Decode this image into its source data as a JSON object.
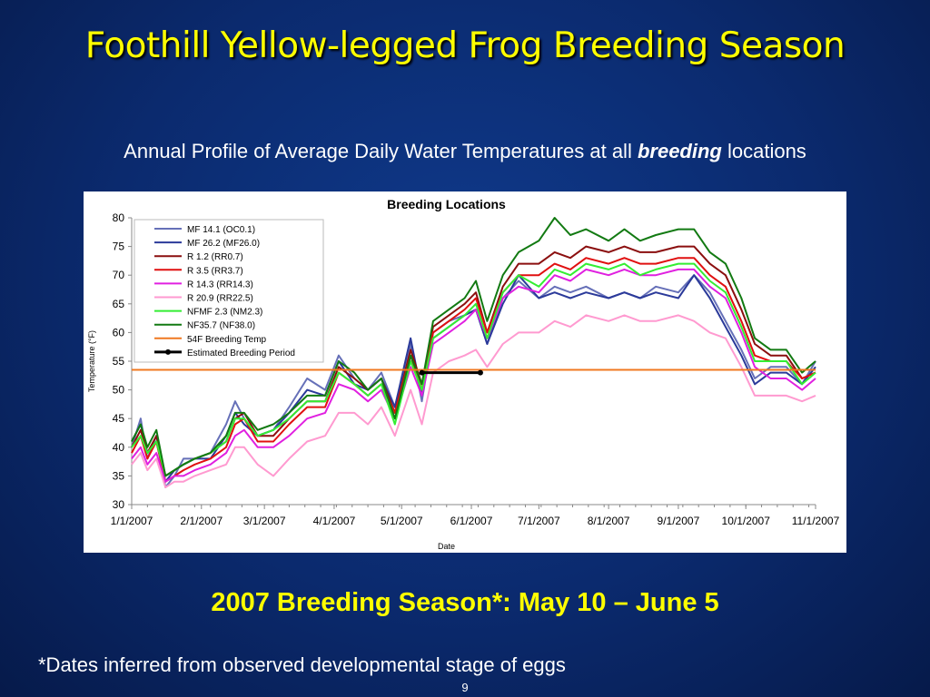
{
  "slide": {
    "title": "Foothill Yellow-legged Frog Breeding Season",
    "subtitle_pre": "Annual Profile of Average Daily Water Temperatures at all ",
    "subtitle_emph": "breeding",
    "subtitle_post": " locations",
    "season_text": "2007 Breeding Season*:  May 10 – June 5",
    "footnote": "*Dates inferred from observed developmental stage of eggs",
    "page_number": "9"
  },
  "chart_data": {
    "type": "line",
    "title": "Breeding Locations",
    "xlabel": "Date",
    "ylabel": "Temperature (°F)",
    "ylim": [
      30,
      80
    ],
    "yticks": [
      30,
      35,
      40,
      45,
      50,
      55,
      60,
      65,
      70,
      75,
      80
    ],
    "xlim": [
      "2007-01-01",
      "2007-11-01"
    ],
    "xticks": [
      "1/1/2007",
      "2/1/2007",
      "3/1/2007",
      "4/1/2007",
      "5/1/2007",
      "6/1/2007",
      "7/1/2007",
      "8/1/2007",
      "9/1/2007",
      "10/1/2007",
      "11/1/2007"
    ],
    "xtick_dates": [
      "2007-01-01",
      "2007-02-01",
      "2007-03-01",
      "2007-04-01",
      "2007-05-01",
      "2007-06-01",
      "2007-07-01",
      "2007-08-01",
      "2007-09-01",
      "2007-10-01",
      "2007-11-01"
    ],
    "legend_position": "top-left",
    "grid": false,
    "series": [
      {
        "name": "MF 14.1 (OC0.1)",
        "color": "#6670b8",
        "x": [
          "2007-01-01",
          "2007-01-05",
          "2007-01-08",
          "2007-01-12",
          "2007-01-16",
          "2007-01-20",
          "2007-01-24",
          "2007-01-29",
          "2007-02-05",
          "2007-02-12",
          "2007-02-16",
          "2007-02-20",
          "2007-02-26",
          "2007-03-05",
          "2007-03-12",
          "2007-03-20",
          "2007-03-28",
          "2007-04-03",
          "2007-04-10",
          "2007-04-16",
          "2007-04-22",
          "2007-04-28",
          "2007-05-05",
          "2007-05-10",
          "2007-05-15",
          "2007-05-22",
          "2007-05-29",
          "2007-06-03",
          "2007-06-08",
          "2007-06-15",
          "2007-06-22",
          "2007-07-01",
          "2007-07-08",
          "2007-07-15",
          "2007-07-22",
          "2007-08-01",
          "2007-08-08",
          "2007-08-15",
          "2007-08-22",
          "2007-09-01",
          "2007-09-08",
          "2007-09-15",
          "2007-09-22",
          "2007-09-29",
          "2007-10-05",
          "2007-10-12",
          "2007-10-19",
          "2007-10-26",
          "2007-11-01"
        ],
        "y": [
          40,
          45,
          38,
          42,
          33,
          35,
          38,
          38,
          39,
          44,
          48,
          45,
          42,
          43,
          47,
          52,
          50,
          56,
          52,
          50,
          53,
          47,
          58,
          48,
          60,
          62,
          63,
          64,
          58,
          66,
          69,
          66,
          68,
          67,
          68,
          66,
          67,
          66,
          68,
          67,
          70,
          67,
          62,
          57,
          52,
          54,
          54,
          51,
          55
        ]
      },
      {
        "name": "MF 26.2 (MF26.0)",
        "color": "#2b3a9a",
        "x": [
          "2007-01-01",
          "2007-01-05",
          "2007-01-08",
          "2007-01-12",
          "2007-01-16",
          "2007-01-20",
          "2007-01-24",
          "2007-01-29",
          "2007-02-05",
          "2007-02-12",
          "2007-02-16",
          "2007-02-20",
          "2007-02-26",
          "2007-03-05",
          "2007-03-12",
          "2007-03-20",
          "2007-03-28",
          "2007-04-03",
          "2007-04-10",
          "2007-04-16",
          "2007-04-22",
          "2007-04-28",
          "2007-05-05",
          "2007-05-10",
          "2007-05-15",
          "2007-05-22",
          "2007-05-29",
          "2007-06-03",
          "2007-06-08",
          "2007-06-15",
          "2007-06-22",
          "2007-07-01",
          "2007-07-08",
          "2007-07-15",
          "2007-07-22",
          "2007-08-01",
          "2007-08-08",
          "2007-08-15",
          "2007-08-22",
          "2007-09-01",
          "2007-09-08",
          "2007-09-15",
          "2007-09-22",
          "2007-09-29",
          "2007-10-05",
          "2007-10-12",
          "2007-10-19",
          "2007-10-26",
          "2007-11-01"
        ],
        "y": [
          41,
          44,
          39,
          41,
          34,
          36,
          37,
          38,
          38,
          42,
          46,
          44,
          42,
          43,
          46,
          50,
          49,
          55,
          51,
          50,
          52,
          47,
          59,
          49,
          59,
          61,
          63,
          64,
          58,
          65,
          70,
          66,
          67,
          66,
          67,
          66,
          67,
          66,
          67,
          66,
          70,
          66,
          61,
          56,
          51,
          53,
          53,
          51,
          54
        ]
      },
      {
        "name": "R 1.2 (RR0.7)",
        "color": "#8b0f0f",
        "x": [
          "2007-01-01",
          "2007-01-05",
          "2007-01-08",
          "2007-01-12",
          "2007-01-16",
          "2007-01-20",
          "2007-01-24",
          "2007-01-29",
          "2007-02-05",
          "2007-02-12",
          "2007-02-16",
          "2007-02-20",
          "2007-02-26",
          "2007-03-05",
          "2007-03-12",
          "2007-03-20",
          "2007-03-28",
          "2007-04-03",
          "2007-04-10",
          "2007-04-16",
          "2007-04-22",
          "2007-04-28",
          "2007-05-05",
          "2007-05-10",
          "2007-05-15",
          "2007-05-22",
          "2007-05-29",
          "2007-06-03",
          "2007-06-08",
          "2007-06-15",
          "2007-06-22",
          "2007-07-01",
          "2007-07-08",
          "2007-07-15",
          "2007-07-22",
          "2007-08-01",
          "2007-08-08",
          "2007-08-15",
          "2007-08-22",
          "2007-09-01",
          "2007-09-08",
          "2007-09-15",
          "2007-09-22",
          "2007-09-29",
          "2007-10-05",
          "2007-10-12",
          "2007-10-19",
          "2007-10-26",
          "2007-11-01"
        ],
        "y": [
          40,
          43,
          39,
          42,
          35,
          36,
          37,
          38,
          39,
          41,
          45,
          46,
          42,
          42,
          45,
          48,
          48,
          54,
          52,
          50,
          52,
          46,
          57,
          51,
          61,
          63,
          65,
          67,
          60,
          68,
          72,
          72,
          74,
          73,
          75,
          74,
          75,
          74,
          74,
          75,
          75,
          72,
          70,
          64,
          58,
          56,
          56,
          52,
          53
        ]
      },
      {
        "name": "R 3.5 (RR3.7)",
        "color": "#e01010",
        "x": [
          "2007-01-01",
          "2007-01-05",
          "2007-01-08",
          "2007-01-12",
          "2007-01-16",
          "2007-01-20",
          "2007-01-24",
          "2007-01-29",
          "2007-02-05",
          "2007-02-12",
          "2007-02-16",
          "2007-02-20",
          "2007-02-26",
          "2007-03-05",
          "2007-03-12",
          "2007-03-20",
          "2007-03-28",
          "2007-04-03",
          "2007-04-10",
          "2007-04-16",
          "2007-04-22",
          "2007-04-28",
          "2007-05-05",
          "2007-05-10",
          "2007-05-15",
          "2007-05-22",
          "2007-05-29",
          "2007-06-03",
          "2007-06-08",
          "2007-06-15",
          "2007-06-22",
          "2007-07-01",
          "2007-07-08",
          "2007-07-15",
          "2007-07-22",
          "2007-08-01",
          "2007-08-08",
          "2007-08-15",
          "2007-08-22",
          "2007-09-01",
          "2007-09-08",
          "2007-09-15",
          "2007-09-22",
          "2007-09-29",
          "2007-10-05",
          "2007-10-12",
          "2007-10-19",
          "2007-10-26",
          "2007-11-01"
        ],
        "y": [
          39,
          42,
          38,
          41,
          34,
          35,
          36,
          37,
          38,
          40,
          44,
          45,
          41,
          41,
          44,
          47,
          47,
          53,
          51,
          49,
          51,
          46,
          56,
          50,
          60,
          62,
          64,
          66,
          60,
          67,
          70,
          70,
          72,
          71,
          73,
          72,
          73,
          72,
          72,
          73,
          73,
          70,
          68,
          62,
          56,
          55,
          55,
          52,
          53
        ]
      },
      {
        "name": "R 14.3 (RR14.3)",
        "color": "#e020e0",
        "x": [
          "2007-01-01",
          "2007-01-05",
          "2007-01-08",
          "2007-01-12",
          "2007-01-16",
          "2007-01-20",
          "2007-01-24",
          "2007-01-29",
          "2007-02-05",
          "2007-02-12",
          "2007-02-16",
          "2007-02-20",
          "2007-02-26",
          "2007-03-05",
          "2007-03-12",
          "2007-03-20",
          "2007-03-28",
          "2007-04-03",
          "2007-04-10",
          "2007-04-16",
          "2007-04-22",
          "2007-04-28",
          "2007-05-05",
          "2007-05-10",
          "2007-05-15",
          "2007-05-22",
          "2007-05-29",
          "2007-06-03",
          "2007-06-08",
          "2007-06-15",
          "2007-06-22",
          "2007-07-01",
          "2007-07-08",
          "2007-07-15",
          "2007-07-22",
          "2007-08-01",
          "2007-08-08",
          "2007-08-15",
          "2007-08-22",
          "2007-09-01",
          "2007-09-08",
          "2007-09-15",
          "2007-09-22",
          "2007-09-29",
          "2007-10-05",
          "2007-10-12",
          "2007-10-19",
          "2007-10-26",
          "2007-11-01"
        ],
        "y": [
          38,
          40,
          37,
          39,
          34,
          35,
          35,
          36,
          37,
          39,
          42,
          43,
          40,
          40,
          42,
          45,
          46,
          51,
          50,
          48,
          50,
          45,
          54,
          49,
          58,
          60,
          62,
          64,
          59,
          66,
          68,
          67,
          70,
          69,
          71,
          70,
          71,
          70,
          70,
          71,
          71,
          68,
          66,
          60,
          54,
          52,
          52,
          50,
          52
        ]
      },
      {
        "name": "R 20.9 (RR22.5)",
        "color": "#ff9ad0",
        "x": [
          "2007-01-01",
          "2007-01-05",
          "2007-01-08",
          "2007-01-12",
          "2007-01-16",
          "2007-01-20",
          "2007-01-24",
          "2007-01-29",
          "2007-02-05",
          "2007-02-12",
          "2007-02-16",
          "2007-02-20",
          "2007-02-26",
          "2007-03-05",
          "2007-03-12",
          "2007-03-20",
          "2007-03-28",
          "2007-04-03",
          "2007-04-10",
          "2007-04-16",
          "2007-04-22",
          "2007-04-28",
          "2007-05-05",
          "2007-05-10",
          "2007-05-15",
          "2007-05-22",
          "2007-05-29",
          "2007-06-03",
          "2007-06-08",
          "2007-06-15",
          "2007-06-22",
          "2007-07-01",
          "2007-07-08",
          "2007-07-15",
          "2007-07-22",
          "2007-08-01",
          "2007-08-08",
          "2007-08-15",
          "2007-08-22",
          "2007-09-01",
          "2007-09-08",
          "2007-09-15",
          "2007-09-22",
          "2007-09-29",
          "2007-10-05",
          "2007-10-12",
          "2007-10-19",
          "2007-10-26",
          "2007-11-01"
        ],
        "y": [
          37,
          39,
          36,
          38,
          33,
          34,
          34,
          35,
          36,
          37,
          40,
          40,
          37,
          35,
          38,
          41,
          42,
          46,
          46,
          44,
          47,
          42,
          50,
          44,
          53,
          55,
          56,
          57,
          54,
          58,
          60,
          60,
          62,
          61,
          63,
          62,
          63,
          62,
          62,
          63,
          62,
          60,
          59,
          54,
          49,
          49,
          49,
          48,
          49
        ]
      },
      {
        "name": "NFMF 2.3 (NM2.3)",
        "color": "#33ee33",
        "x": [
          "2007-01-01",
          "2007-01-05",
          "2007-01-08",
          "2007-01-12",
          "2007-01-16",
          "2007-01-20",
          "2007-01-24",
          "2007-01-29",
          "2007-02-05",
          "2007-02-12",
          "2007-02-16",
          "2007-02-20",
          "2007-02-26",
          "2007-03-05",
          "2007-03-12",
          "2007-03-20",
          "2007-03-28",
          "2007-04-03",
          "2007-04-10",
          "2007-04-16",
          "2007-04-22",
          "2007-04-28",
          "2007-05-05",
          "2007-05-10",
          "2007-05-15",
          "2007-05-22",
          "2007-05-29",
          "2007-06-03",
          "2007-06-08",
          "2007-06-15",
          "2007-06-22",
          "2007-07-01",
          "2007-07-08",
          "2007-07-15",
          "2007-07-22",
          "2007-08-01",
          "2007-08-08",
          "2007-08-15",
          "2007-08-22",
          "2007-09-01",
          "2007-09-08",
          "2007-09-15",
          "2007-09-22",
          "2007-09-29",
          "2007-10-05",
          "2007-10-12",
          "2007-10-19",
          "2007-10-26",
          "2007-11-01"
        ],
        "y": [
          40,
          42,
          39,
          41,
          35,
          36,
          37,
          38,
          39,
          41,
          45,
          45,
          42,
          43,
          45,
          48,
          48,
          53,
          51,
          49,
          51,
          44,
          55,
          50,
          59,
          61,
          63,
          65,
          59,
          67,
          70,
          68,
          71,
          70,
          72,
          71,
          72,
          70,
          71,
          72,
          72,
          69,
          67,
          61,
          55,
          55,
          55,
          51,
          53
        ]
      },
      {
        "name": "NF35.7 (NF38.0)",
        "color": "#127a12",
        "x": [
          "2007-01-01",
          "2007-01-05",
          "2007-01-08",
          "2007-01-12",
          "2007-01-16",
          "2007-01-20",
          "2007-01-24",
          "2007-01-29",
          "2007-02-05",
          "2007-02-12",
          "2007-02-16",
          "2007-02-20",
          "2007-02-26",
          "2007-03-05",
          "2007-03-12",
          "2007-03-20",
          "2007-03-28",
          "2007-04-03",
          "2007-04-10",
          "2007-04-16",
          "2007-04-22",
          "2007-04-28",
          "2007-05-05",
          "2007-05-10",
          "2007-05-15",
          "2007-05-22",
          "2007-05-29",
          "2007-06-03",
          "2007-06-08",
          "2007-06-15",
          "2007-06-22",
          "2007-07-01",
          "2007-07-08",
          "2007-07-15",
          "2007-07-22",
          "2007-08-01",
          "2007-08-08",
          "2007-08-15",
          "2007-08-22",
          "2007-09-01",
          "2007-09-08",
          "2007-09-15",
          "2007-09-22",
          "2007-09-29",
          "2007-10-05",
          "2007-10-12",
          "2007-10-19",
          "2007-10-26",
          "2007-11-01"
        ],
        "y": [
          41,
          44,
          40,
          43,
          35,
          36,
          37,
          38,
          39,
          42,
          46,
          46,
          43,
          44,
          46,
          49,
          49,
          55,
          53,
          50,
          52,
          45,
          56,
          51,
          62,
          64,
          66,
          69,
          62,
          70,
          74,
          76,
          80,
          77,
          78,
          76,
          78,
          76,
          77,
          78,
          78,
          74,
          72,
          66,
          59,
          57,
          57,
          53,
          55
        ]
      },
      {
        "name": "54F Breeding Temp",
        "color": "#f07820",
        "x": [
          "2007-01-01",
          "2007-11-01"
        ],
        "y": [
          53.5,
          53.5
        ]
      },
      {
        "name": "Estimated Breeding Period",
        "color": "#000000",
        "x": [
          "2007-05-10",
          "2007-06-05"
        ],
        "y": [
          53,
          53
        ]
      }
    ]
  }
}
